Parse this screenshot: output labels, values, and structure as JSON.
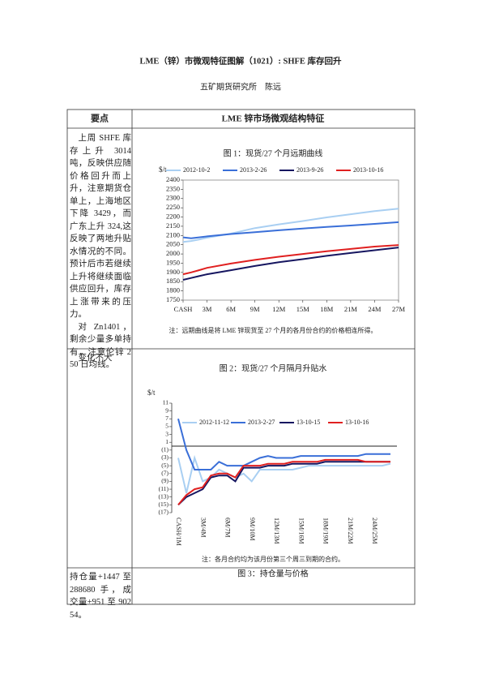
{
  "header": {
    "title": "LME（锌）市微观特征图解（1021）: SHFE 库存回升",
    "subtitle": "五矿期货研究所　陈远"
  },
  "table": {
    "headers": [
      "要点",
      "LME 锌市场微观结构特征"
    ],
    "rows": [
      {
        "text": [
          "上周 SHFE 库存上升 3014 吨，反映供应随价格回升而上升，注意期货仓单上，上海地区下降 3429，而广东上升 324,这反映了两地升贴水情况的不同。预计后市若继续上升将继续面临供应回升，库存上涨带来的压力。",
          "对 Zn1401，剩余少量多单持有，注意伦锌 250 日均线。"
        ]
      },
      {
        "text": [
          "变化不大"
        ]
      },
      {
        "text": [
          "持仓量+1447 至 288680 手，成交量+951 至 90254。"
        ],
        "chart_title": "图 3：持仓量与价格"
      }
    ]
  },
  "chart_data": [
    {
      "type": "line",
      "title": "图 1：现货/27 个月远期曲线",
      "y_label": "$/t",
      "note": "注：远期曲线是将 LME 锌现货至 27 个月的各月份合约的价格相连所得。",
      "x": [
        0,
        1,
        2,
        3,
        6,
        9,
        12,
        15,
        18,
        21,
        24,
        27
      ],
      "xlim": [
        0,
        27
      ],
      "xticks": [
        {
          "value": 0,
          "label": "CASH"
        },
        {
          "value": 3,
          "label": "3M"
        },
        {
          "value": 6,
          "label": "6M"
        },
        {
          "value": 9,
          "label": "9M"
        },
        {
          "value": 12,
          "label": "12M"
        },
        {
          "value": 15,
          "label": "15M"
        },
        {
          "value": 18,
          "label": "18M"
        },
        {
          "value": 21,
          "label": "21M"
        },
        {
          "value": 24,
          "label": "24M"
        },
        {
          "value": 27,
          "label": "27M"
        }
      ],
      "ylim": [
        1750,
        2400
      ],
      "yticks": [
        1750,
        1800,
        1850,
        1900,
        1950,
        2000,
        2050,
        2100,
        2150,
        2200,
        2250,
        2300,
        2350,
        2400
      ],
      "legend": "top",
      "series": [
        {
          "name": "2012-10-2",
          "color": "#a9cff2",
          "values": [
            2065,
            2070,
            2078,
            2088,
            2110,
            2140,
            2160,
            2178,
            2198,
            2215,
            2232,
            2245
          ]
        },
        {
          "name": "2013-2-26",
          "color": "#3a6fd8",
          "values": [
            2090,
            2085,
            2090,
            2095,
            2108,
            2118,
            2128,
            2138,
            2146,
            2154,
            2163,
            2172
          ]
        },
        {
          "name": "2013-9-26",
          "color": "#161660",
          "values": [
            1860,
            1870,
            1880,
            1890,
            1912,
            1935,
            1955,
            1972,
            1990,
            2005,
            2020,
            2035
          ]
        },
        {
          "name": "2013-10-16",
          "color": "#e02020",
          "values": [
            1890,
            1900,
            1912,
            1925,
            1948,
            1968,
            1985,
            2000,
            2015,
            2027,
            2040,
            2048
          ]
        }
      ]
    },
    {
      "type": "line",
      "title": "图 2：现货/27 个月隔月升贴水",
      "y_label": "$/t",
      "note": "注：各月合约均为该月份第三个周三到期的合约。",
      "categories": [
        "CASH/1M",
        null,
        null,
        "3M/4M",
        null,
        null,
        "6M/7M",
        null,
        null,
        "9M/10M",
        null,
        null,
        "12M/13M",
        null,
        null,
        "15M/16M",
        null,
        null,
        "18M/19M",
        null,
        null,
        "21M/22M",
        null,
        null,
        "24M/25M",
        null,
        null
      ],
      "ylim": [
        -17,
        11
      ],
      "yticks": [
        11,
        9,
        7,
        5,
        3,
        1,
        {
          "value": -1,
          "label": "(1)"
        },
        {
          "value": -3,
          "label": "(3)"
        },
        {
          "value": -5,
          "label": "(5)"
        },
        {
          "value": -7,
          "label": "(7)"
        },
        {
          "value": -9,
          "label": "(9)"
        },
        {
          "value": -11,
          "label": "(11)"
        },
        {
          "value": -13,
          "label": "(13)"
        },
        {
          "value": -15,
          "label": "(15)"
        },
        {
          "value": -17,
          "label": "(17)"
        }
      ],
      "negative_tick_color": "#e02020",
      "zero_line": true,
      "legend": "upper center",
      "series": [
        {
          "name": "2012-11-12",
          "color": "#a9cff2",
          "values": [
            -3,
            -12,
            -3,
            -9,
            -8,
            -6,
            -7,
            -8,
            -7,
            -9,
            -6,
            -6,
            -6,
            -6,
            -6,
            -5.5,
            -5,
            -5,
            -5,
            -5,
            -5,
            -5,
            -5,
            -5,
            -5,
            -5,
            -4.5
          ]
        },
        {
          "name": "2013-2-27",
          "color": "#3a6fd8",
          "values": [
            7,
            -1,
            -6,
            -6,
            -6,
            -4,
            -5,
            -5,
            -5,
            -4,
            -3,
            -2.5,
            -3,
            -3,
            -3,
            -2.5,
            -2.5,
            -2.5,
            -2.5,
            -2.5,
            -2.5,
            -2.5,
            -2.5,
            -2,
            -2,
            -2,
            -2
          ]
        },
        {
          "name": "13-10-15",
          "color": "#161660",
          "values": [
            -15,
            -13,
            -12,
            -11,
            -8,
            -7.5,
            -7.5,
            -9,
            -5.5,
            -5.5,
            -5.5,
            -5,
            -5,
            -5,
            -4.5,
            -4.5,
            -4.5,
            -4.5,
            -4,
            -4,
            -4,
            -4,
            -4,
            -4,
            -4,
            -4,
            -4
          ]
        },
        {
          "name": "13-10-16",
          "color": "#e02020",
          "values": [
            -15,
            -12.5,
            -11,
            -10.5,
            -7.5,
            -7,
            -7,
            -8,
            -5,
            -5,
            -5,
            -4.5,
            -4.5,
            -4.5,
            -4,
            -4,
            -4,
            -4,
            -3.5,
            -3.5,
            -3.5,
            -3.5,
            -3.5,
            -4,
            -4,
            -4,
            -4
          ]
        }
      ]
    }
  ]
}
